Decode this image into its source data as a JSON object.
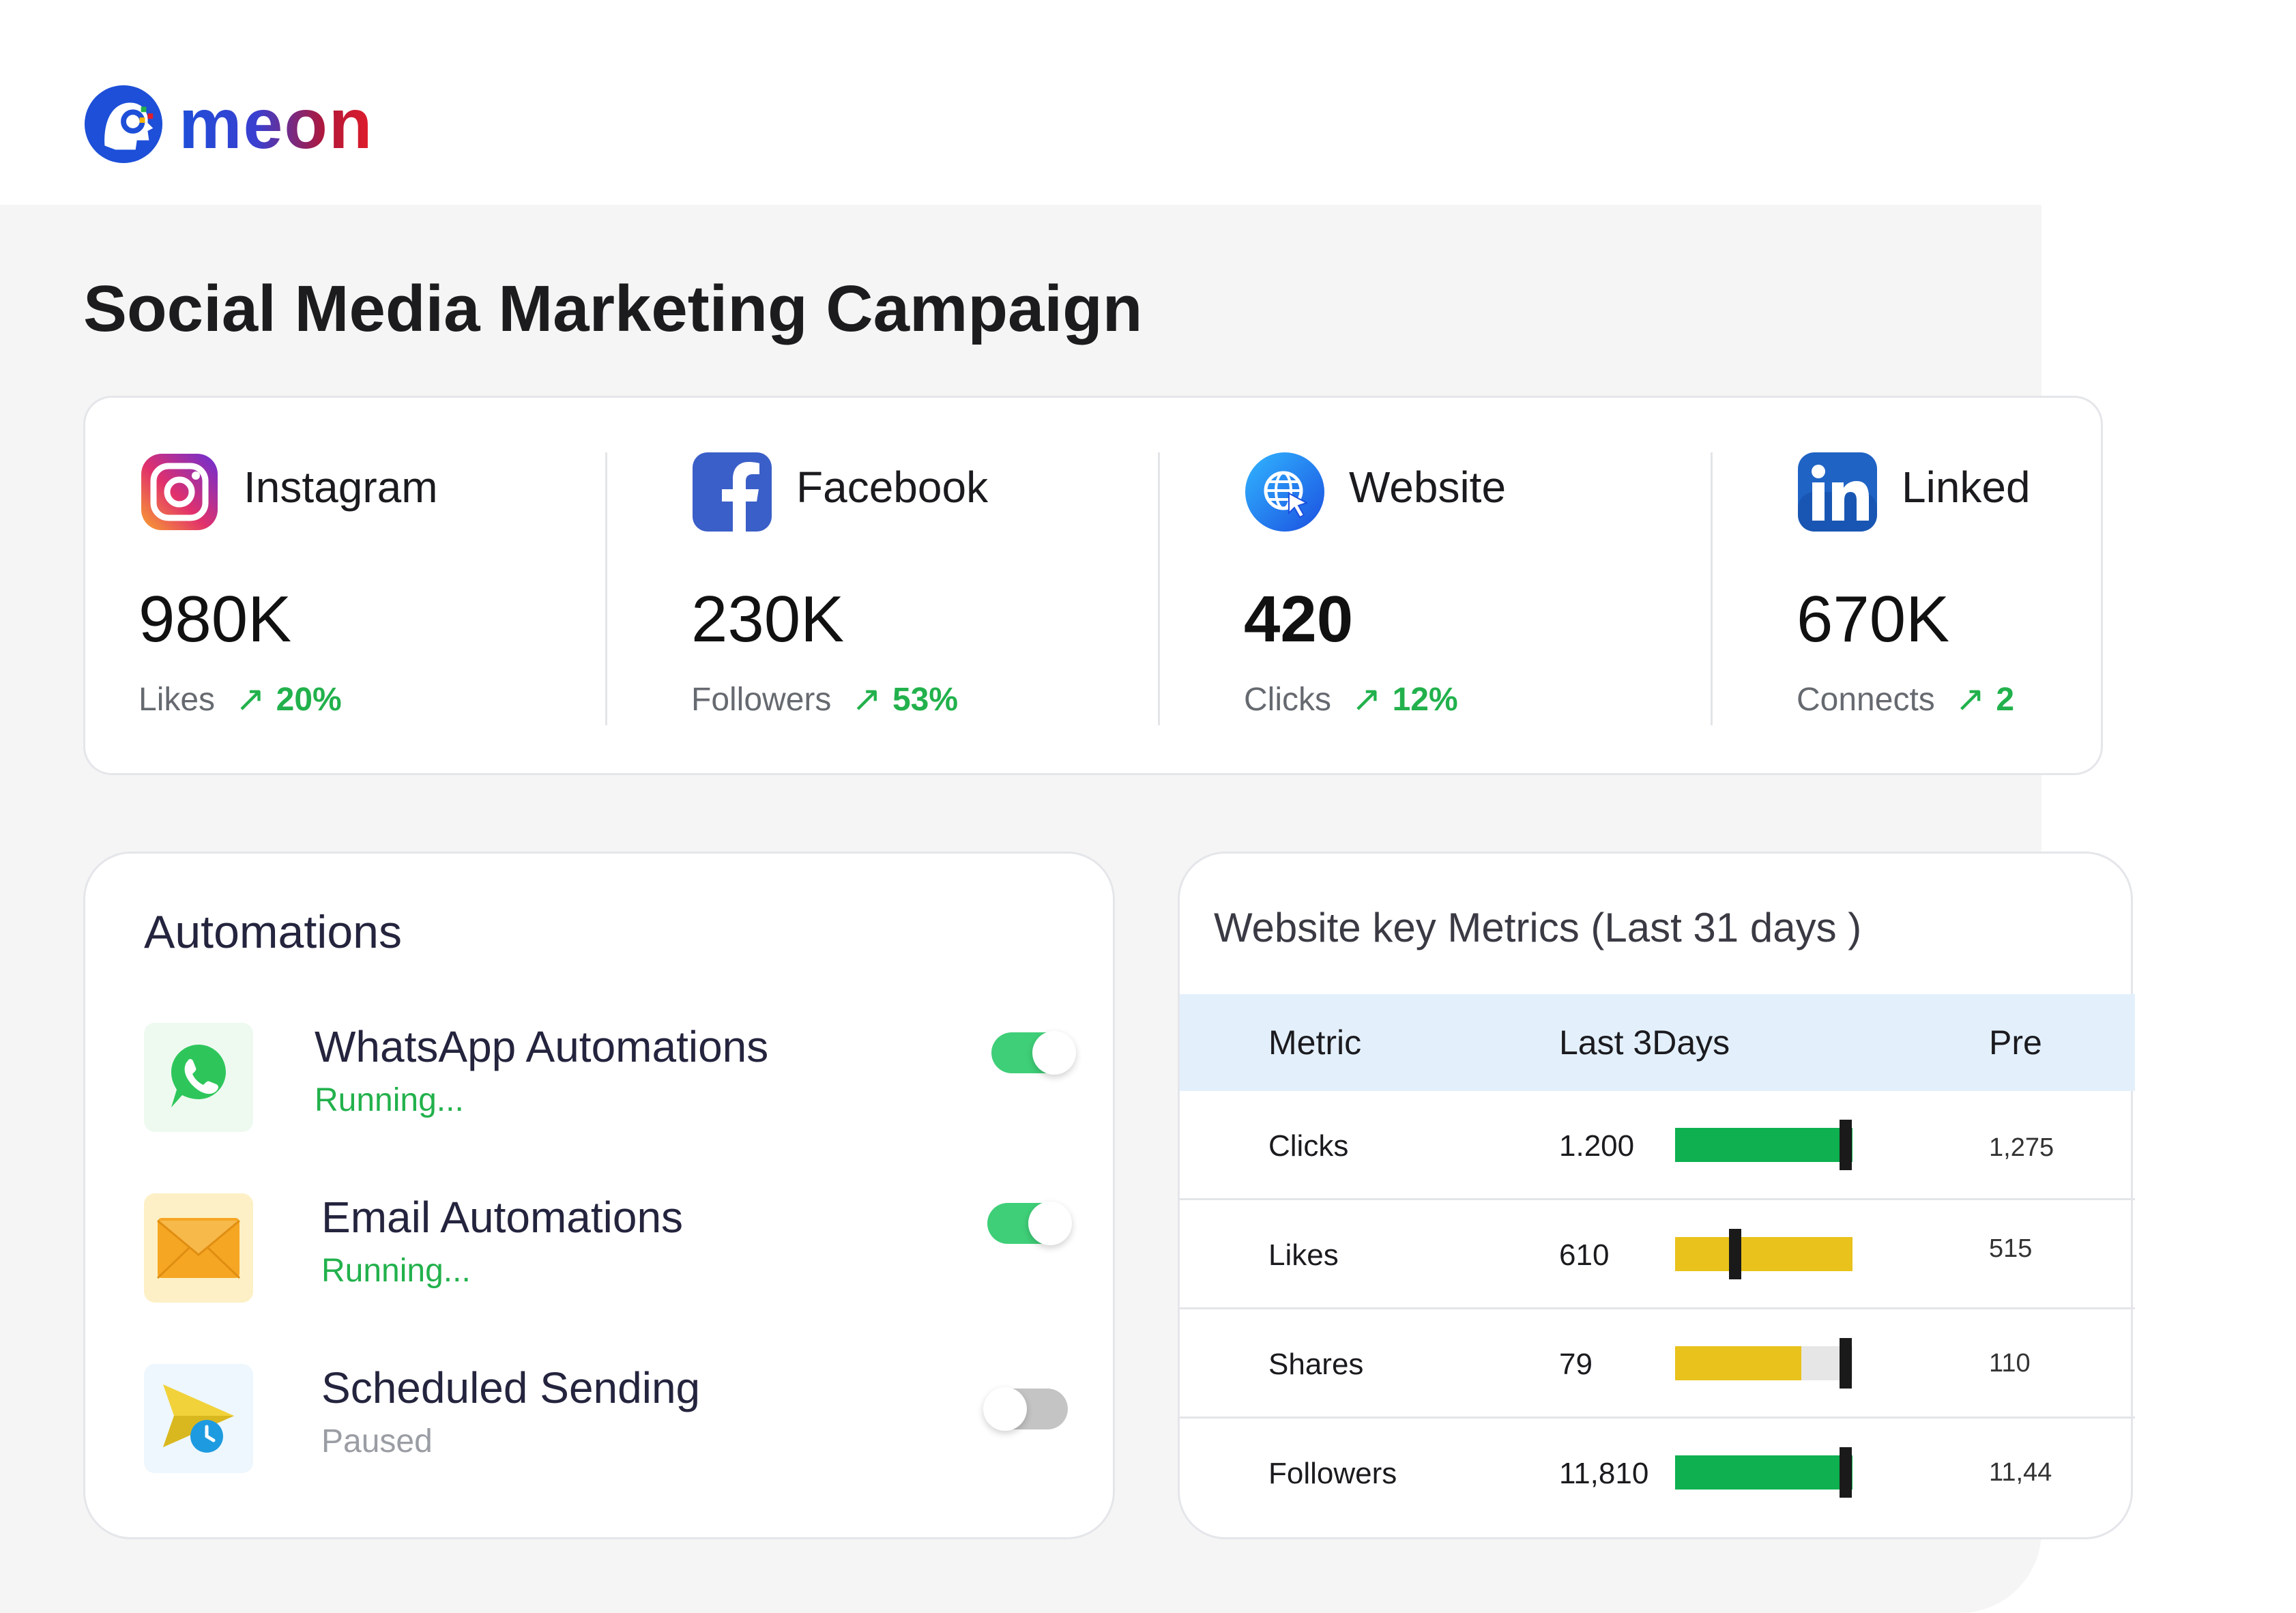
{
  "brand": {
    "name": "meon"
  },
  "page": {
    "title": "Social Media Marketing Campaign"
  },
  "stats": [
    {
      "name": "Instagram",
      "value": "980K",
      "metric": "Likes",
      "change": "20%",
      "icon": "instagram-icon"
    },
    {
      "name": "Facebook",
      "value": "230K",
      "metric": "Followers",
      "change": "53%",
      "icon": "facebook-icon"
    },
    {
      "name": "Website",
      "value": "420",
      "metric": "Clicks",
      "change": "12%",
      "icon": "globe-cursor-icon"
    },
    {
      "name": "Linked",
      "value": "670K",
      "metric": "Connects",
      "change": "2",
      "icon": "linkedin-icon"
    }
  ],
  "arrow_glyph": "↗",
  "automations": {
    "title": "Automations",
    "items": [
      {
        "title": "WhatsApp Automations",
        "status": "Running...",
        "enabled": true,
        "icon": "whatsapp-icon"
      },
      {
        "title": "Email Automations",
        "status": "Running...",
        "enabled": true,
        "icon": "email-icon"
      },
      {
        "title": "Scheduled Sending",
        "status": "Paused",
        "enabled": false,
        "icon": "scheduled-send-icon"
      }
    ]
  },
  "metrics": {
    "title": "Website key Metrics (Last 31 days )",
    "columns": [
      "Metric",
      "Last 3Days",
      "Pre"
    ],
    "rows": [
      {
        "metric": "Clicks",
        "last": "1.200",
        "prev": "1,275",
        "bar_fill": 1.0,
        "bar_marker": 0.96,
        "bar_color": "#0eb050"
      },
      {
        "metric": "Likes",
        "last": "610",
        "prev": "515",
        "bar_fill": 1.0,
        "bar_marker": 0.34,
        "bar_color": "#e9c21b"
      },
      {
        "metric": "Shares",
        "last": "79",
        "prev": "110",
        "bar_fill": 0.71,
        "bar_marker": 0.96,
        "bar_color": "#e9c21b"
      },
      {
        "metric": "Followers",
        "last": "11,810",
        "prev": "11,44",
        "bar_fill": 1.0,
        "bar_marker": 0.96,
        "bar_color": "#0eb050"
      }
    ]
  },
  "colors": {
    "accent_green": "#22b14c",
    "toggle_on": "#3fcf78",
    "toggle_off": "#c4c4c4",
    "table_header": "#e3f0fc"
  }
}
